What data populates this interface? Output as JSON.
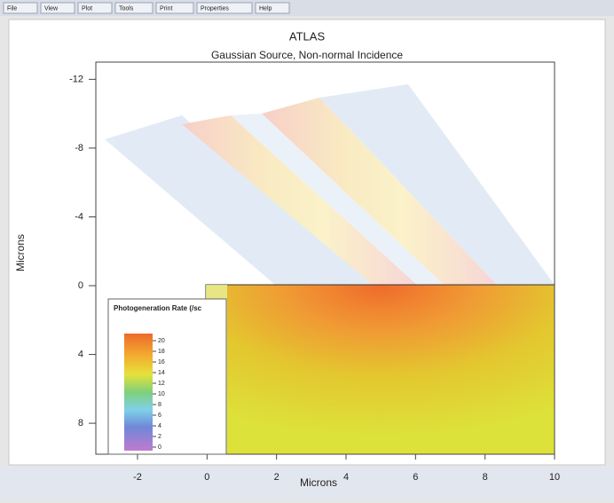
{
  "menu": [
    "File",
    "View",
    "Plot",
    "Tools",
    "Print",
    "Properties",
    "Help"
  ],
  "plot": {
    "title": "ATLAS",
    "subtitle": "Gaussian Source, Non-normal Incidence",
    "x_label": "Microns",
    "y_label": "Microns",
    "xlim": [
      -3.2,
      10
    ],
    "xticks": [
      -2,
      0,
      2,
      4,
      6,
      8,
      10
    ],
    "ylim": [
      -13,
      9.8
    ],
    "yticks": [
      -12,
      -8,
      -4,
      0,
      4,
      8
    ],
    "legend": {
      "title": "Photogeneration Rate (/sc",
      "ticks": [
        20,
        18,
        16,
        14,
        12,
        10,
        8,
        6,
        4,
        2,
        0
      ]
    }
  }
}
